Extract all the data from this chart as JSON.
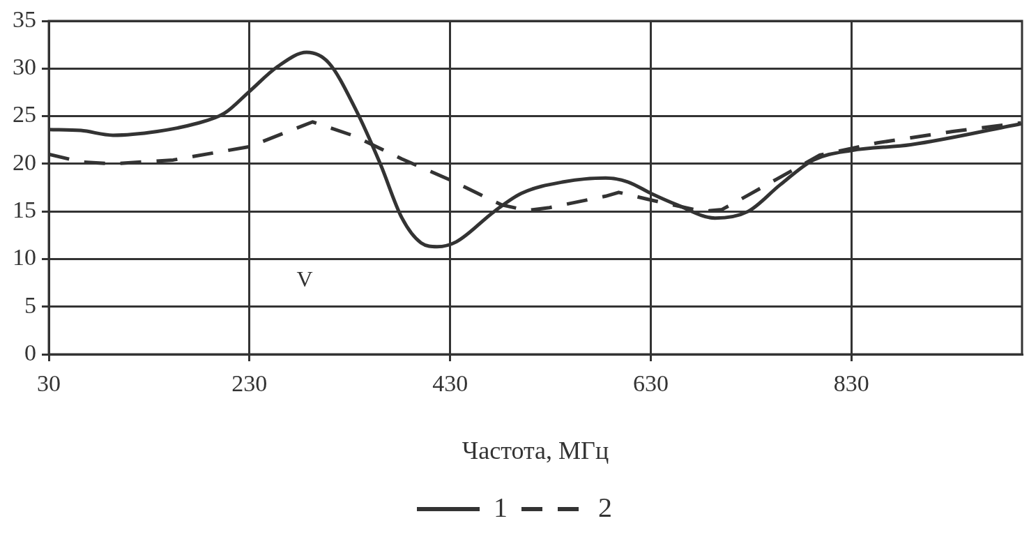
{
  "chart_data": {
    "type": "line",
    "xlabel": "Частота, МГц",
    "xlim": [
      30,
      1000
    ],
    "xticks": [
      30,
      230,
      430,
      630,
      830
    ],
    "ylim": [
      0,
      35
    ],
    "yticks": [
      0,
      5,
      10,
      15,
      20,
      25,
      30,
      35
    ],
    "grid": true,
    "legend": "bottom",
    "marker": "none",
    "annotations": [
      "V"
    ],
    "series": [
      {
        "name": "1",
        "color": "#333333",
        "line_style": "solid",
        "x": [
          30,
          62,
          94,
          138,
          176,
          205,
          230,
          258,
          287,
          309,
          335,
          360,
          382,
          401,
          417,
          436,
          474,
          501,
          543,
          585,
          607,
          630,
          656,
          694,
          727,
          759,
          792,
          830,
          889,
          999
        ],
        "values": [
          23.6,
          23.5,
          23.0,
          23.4,
          24.2,
          25.3,
          27.6,
          30.2,
          31.7,
          30.6,
          25.9,
          20.1,
          14.3,
          11.7,
          11.3,
          11.8,
          15.0,
          16.9,
          18.1,
          18.5,
          18.1,
          16.9,
          15.7,
          14.3,
          15.0,
          17.8,
          20.4,
          21.4,
          22.0,
          24.2
        ]
      },
      {
        "name": "2",
        "color": "#333333",
        "line_style": "dashed",
        "x": [
          30,
          62,
          94,
          154,
          230,
          293,
          335,
          382,
          430,
          481,
          506,
          529,
          585,
          598,
          630,
          682,
          701,
          727,
          798,
          856,
          931,
          999
        ],
        "values": [
          21.0,
          20.2,
          20.0,
          20.4,
          21.8,
          24.4,
          22.9,
          20.5,
          18.3,
          15.7,
          15.1,
          15.4,
          16.6,
          17.0,
          16.2,
          15.0,
          15.2,
          16.7,
          20.9,
          22.2,
          23.4,
          24.3
        ]
      }
    ]
  }
}
